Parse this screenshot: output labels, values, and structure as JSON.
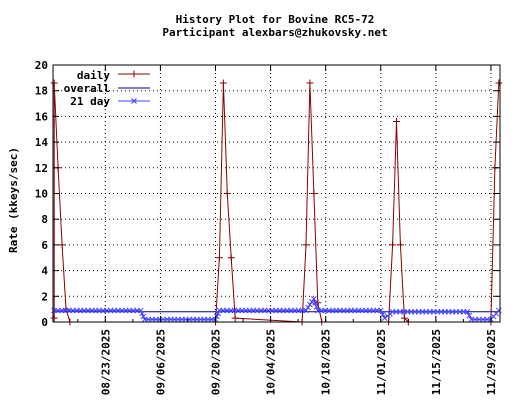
{
  "chart_data": {
    "type": "line",
    "title": "History Plot for Bovine RC5-72",
    "subtitle": "Participant alexbars@zhukovsky.net",
    "ylabel": "Rate (kkeys/sec)",
    "xlabel": "",
    "ylim": [
      0,
      20
    ],
    "yticks": [
      "0",
      "2",
      "4",
      "6",
      "8",
      "10",
      "12",
      "14",
      "16",
      "18",
      "20"
    ],
    "xlim": [
      "2025-08-10",
      "2025-12-01"
    ],
    "xticks": [
      "08/23/2025",
      "09/06/2025",
      "09/20/2025",
      "10/04/2025",
      "10/18/2025",
      "11/01/2025",
      "11/15/2025",
      "11/29/2025"
    ],
    "grid": true,
    "legend_position": "top-left",
    "series": [
      {
        "name": "daily",
        "color": "#8b0000",
        "marker": "plus",
        "points": [
          [
            "2025-08-10",
            0.3
          ],
          [
            "2025-08-10",
            18.6
          ],
          [
            "2025-08-11",
            12.0
          ],
          [
            "2025-08-12",
            6.0
          ],
          [
            "2025-08-13",
            1.0
          ],
          [
            "2025-08-14",
            0.0
          ],
          [
            "2025-09-20",
            0.0
          ],
          [
            "2025-09-21",
            5.0
          ],
          [
            "2025-09-22",
            18.6
          ],
          [
            "2025-09-23",
            10.0
          ],
          [
            "2025-09-24",
            5.0
          ],
          [
            "2025-09-25",
            0.3
          ],
          [
            "2025-10-12",
            0.0
          ],
          [
            "2025-10-13",
            6.0
          ],
          [
            "2025-10-14",
            18.6
          ],
          [
            "2025-10-15",
            10.0
          ],
          [
            "2025-10-16",
            1.5
          ],
          [
            "2025-10-17",
            0.0
          ],
          [
            "2025-11-03",
            0.0
          ],
          [
            "2025-11-04",
            6.0
          ],
          [
            "2025-11-05",
            15.6
          ],
          [
            "2025-11-06",
            6.0
          ],
          [
            "2025-11-07",
            0.3
          ],
          [
            "2025-11-08",
            0.0
          ],
          [
            "2025-11-29",
            0.0
          ],
          [
            "2025-11-30",
            12.0
          ],
          [
            "2025-12-01",
            18.6
          ]
        ]
      },
      {
        "name": "overall",
        "color": "#000080",
        "marker": "none",
        "points": [
          [
            "2025-08-10",
            0.8
          ],
          [
            "2025-12-01",
            0.8
          ]
        ]
      },
      {
        "name": "21 day",
        "color": "#4040ff",
        "marker": "x",
        "points": [
          [
            "2025-08-10",
            0.9
          ],
          [
            "2025-09-01",
            0.9
          ],
          [
            "2025-09-02",
            0.2
          ],
          [
            "2025-09-20",
            0.2
          ],
          [
            "2025-09-21",
            0.9
          ],
          [
            "2025-10-13",
            0.9
          ],
          [
            "2025-10-15",
            1.8
          ],
          [
            "2025-10-16",
            0.9
          ],
          [
            "2025-11-01",
            0.9
          ],
          [
            "2025-11-02",
            0.3
          ],
          [
            "2025-11-04",
            0.8
          ],
          [
            "2025-11-23",
            0.8
          ],
          [
            "2025-11-24",
            0.2
          ],
          [
            "2025-11-29",
            0.2
          ],
          [
            "2025-12-01",
            0.9
          ]
        ]
      }
    ]
  }
}
